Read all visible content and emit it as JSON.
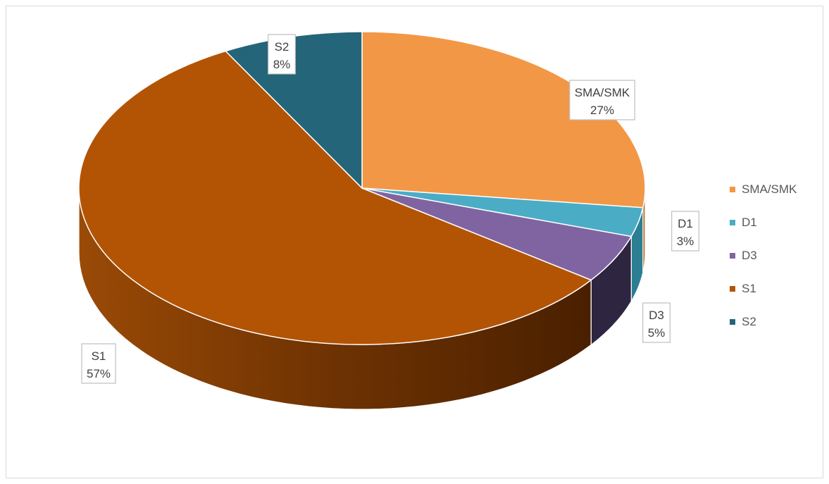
{
  "chart_data": {
    "type": "pie",
    "three_d": true,
    "categories": [
      "SMA/SMK",
      "D1",
      "D3",
      "S1",
      "S2"
    ],
    "values": [
      27,
      3,
      5,
      57,
      8
    ],
    "data_labels": [
      "27%",
      "3%",
      "5%",
      "57%",
      "8%"
    ],
    "colors": [
      "#F29746",
      "#4BACC6",
      "#8064A2",
      "#B35405",
      "#246579"
    ],
    "side_colors": [
      "#C0701F",
      "#2C7E93",
      "#2E2540",
      "#6A3000",
      "#153D49"
    ],
    "legend_position": "right",
    "title": ""
  }
}
